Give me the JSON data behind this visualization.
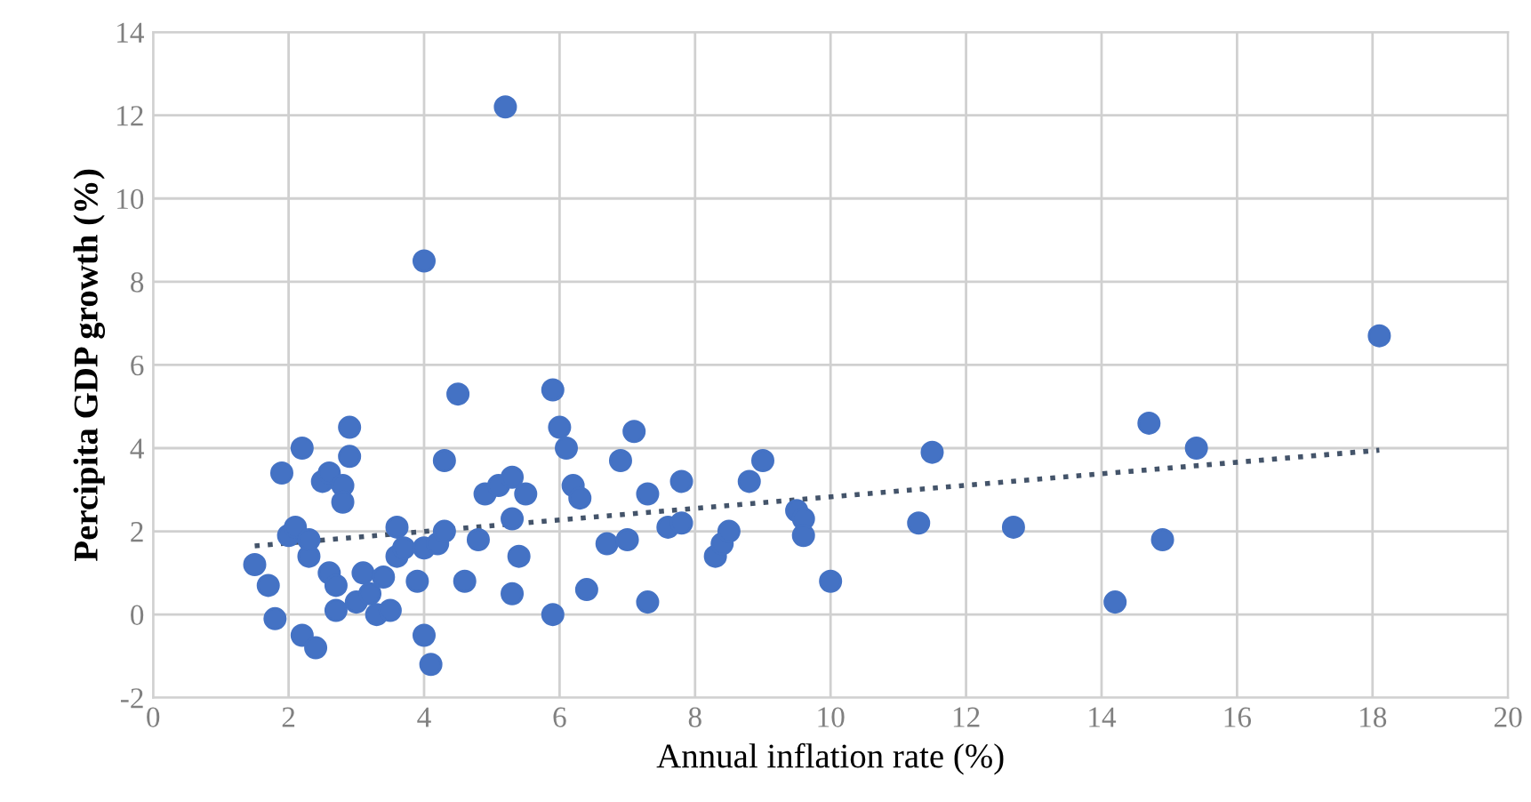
{
  "chart_data": {
    "type": "scatter",
    "xlabel": "Annual inflation rate (%)",
    "ylabel": "Percipita GDP growth (%)",
    "xlim": [
      0,
      20
    ],
    "ylim": [
      -2,
      14
    ],
    "xticks": [
      0,
      2,
      4,
      6,
      8,
      10,
      12,
      14,
      16,
      18,
      20
    ],
    "yticks": [
      -2,
      0,
      2,
      4,
      6,
      8,
      10,
      12,
      14
    ],
    "grid": true,
    "series": [
      {
        "color": "#4472c4",
        "marker": "circle",
        "x": [
          1.5,
          1.7,
          1.8,
          1.9,
          2.0,
          2.1,
          2.2,
          2.2,
          2.3,
          2.3,
          2.4,
          2.5,
          2.6,
          2.6,
          2.7,
          2.7,
          2.8,
          2.8,
          2.9,
          2.9,
          3.0,
          3.1,
          3.2,
          3.3,
          3.4,
          3.5,
          3.6,
          3.6,
          3.7,
          3.9,
          4.0,
          4.0,
          4.1,
          4.0,
          4.2,
          4.3,
          4.3,
          4.5,
          4.6,
          4.8,
          4.9,
          5.1,
          5.2,
          5.3,
          5.3,
          5.3,
          5.4,
          5.5,
          5.9,
          5.9,
          6.0,
          6.1,
          6.2,
          6.3,
          6.4,
          6.7,
          6.9,
          7.0,
          7.1,
          7.3,
          7.3,
          7.6,
          7.8,
          7.8,
          8.3,
          8.4,
          8.5,
          8.8,
          9.0,
          9.5,
          9.6,
          9.6,
          10.0,
          11.3,
          11.5,
          12.7,
          14.2,
          14.7,
          14.9,
          15.4,
          18.1
        ],
        "values": [
          1.2,
          0.7,
          -0.1,
          3.4,
          1.9,
          2.1,
          -0.5,
          4.0,
          1.4,
          1.8,
          -0.8,
          3.2,
          3.4,
          1.0,
          0.7,
          0.1,
          3.1,
          2.7,
          4.5,
          3.8,
          0.3,
          1.0,
          0.5,
          0.0,
          0.9,
          0.1,
          1.4,
          2.1,
          1.6,
          0.8,
          8.5,
          -0.5,
          -1.2,
          1.6,
          1.7,
          2.0,
          3.7,
          5.3,
          0.8,
          1.8,
          2.9,
          3.1,
          12.2,
          3.3,
          2.3,
          0.5,
          1.4,
          2.9,
          5.4,
          0.0,
          4.5,
          4.0,
          3.1,
          2.8,
          0.6,
          1.7,
          3.7,
          1.8,
          4.4,
          0.3,
          2.9,
          2.1,
          2.2,
          3.2,
          1.4,
          1.7,
          2.0,
          3.2,
          3.7,
          2.5,
          2.3,
          1.9,
          0.8,
          2.2,
          3.9,
          2.1,
          0.3,
          4.6,
          1.8,
          4.0,
          6.7
        ]
      },
      {
        "type": "line",
        "color": "#44546a",
        "line_style": "dotted",
        "x": [
          1.5,
          18.1
        ],
        "values": [
          1.65,
          3.95
        ]
      }
    ]
  }
}
